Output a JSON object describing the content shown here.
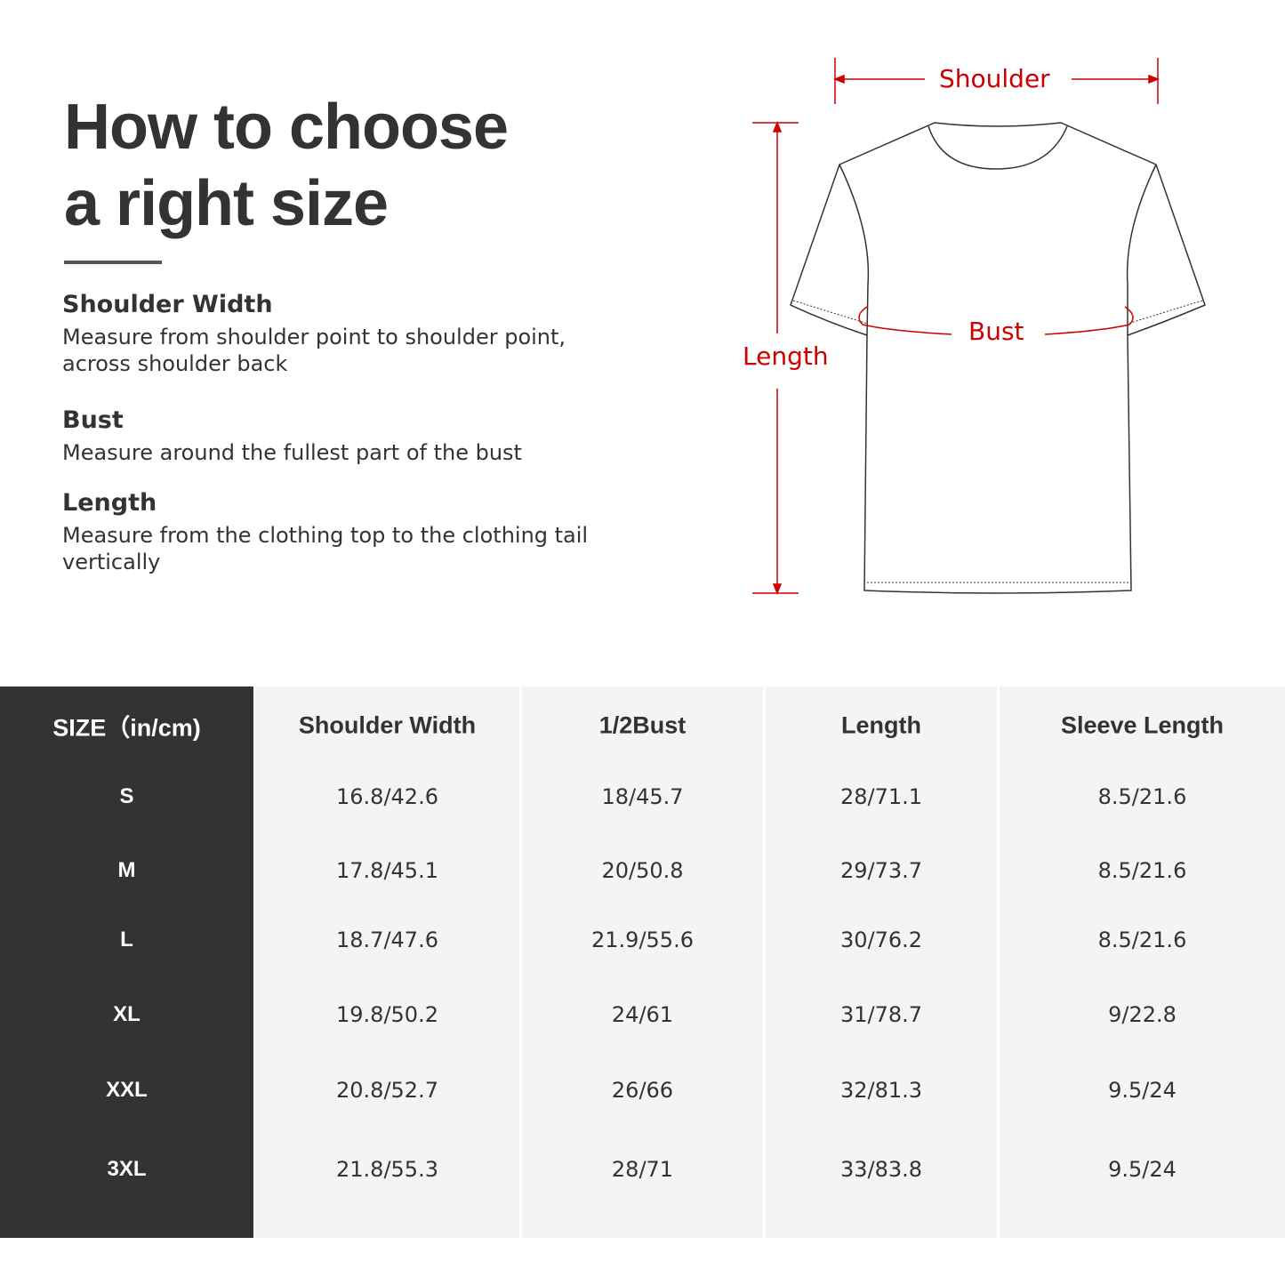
{
  "title_line1": "How to choose",
  "title_line2": "a right size",
  "guide": [
    {
      "heading": "Shoulder Width",
      "text": "Measure from shoulder point to shoulder point, across shoulder back"
    },
    {
      "heading": "Bust",
      "text": "Measure around the fullest part of the bust"
    },
    {
      "heading": "Length",
      "text": "Measure from the clothing top to the clothing tail vertically"
    }
  ],
  "diagram": {
    "shoulder": "Shoulder",
    "bust": "Bust",
    "length": "Length",
    "accent_color": "#cc0000"
  },
  "table": {
    "headers": [
      "SIZE（in/cm)",
      "Shoulder Width",
      "1/2Bust",
      "Length",
      "Sleeve Length"
    ],
    "rows": [
      [
        "S",
        "16.8/42.6",
        "18/45.7",
        "28/71.1",
        "8.5/21.6"
      ],
      [
        "M",
        "17.8/45.1",
        "20/50.8",
        "29/73.7",
        "8.5/21.6"
      ],
      [
        "L",
        "18.7/47.6",
        "21.9/55.6",
        "30/76.2",
        "8.5/21.6"
      ],
      [
        "XL",
        "19.8/50.2",
        "24/61",
        "31/78.7",
        "9/22.8"
      ],
      [
        "XXL",
        "20.8/52.7",
        "26/66",
        "32/81.3",
        "9.5/24"
      ],
      [
        "3XL",
        "21.8/55.3",
        "28/71",
        "33/83.8",
        "9.5/24"
      ]
    ]
  }
}
